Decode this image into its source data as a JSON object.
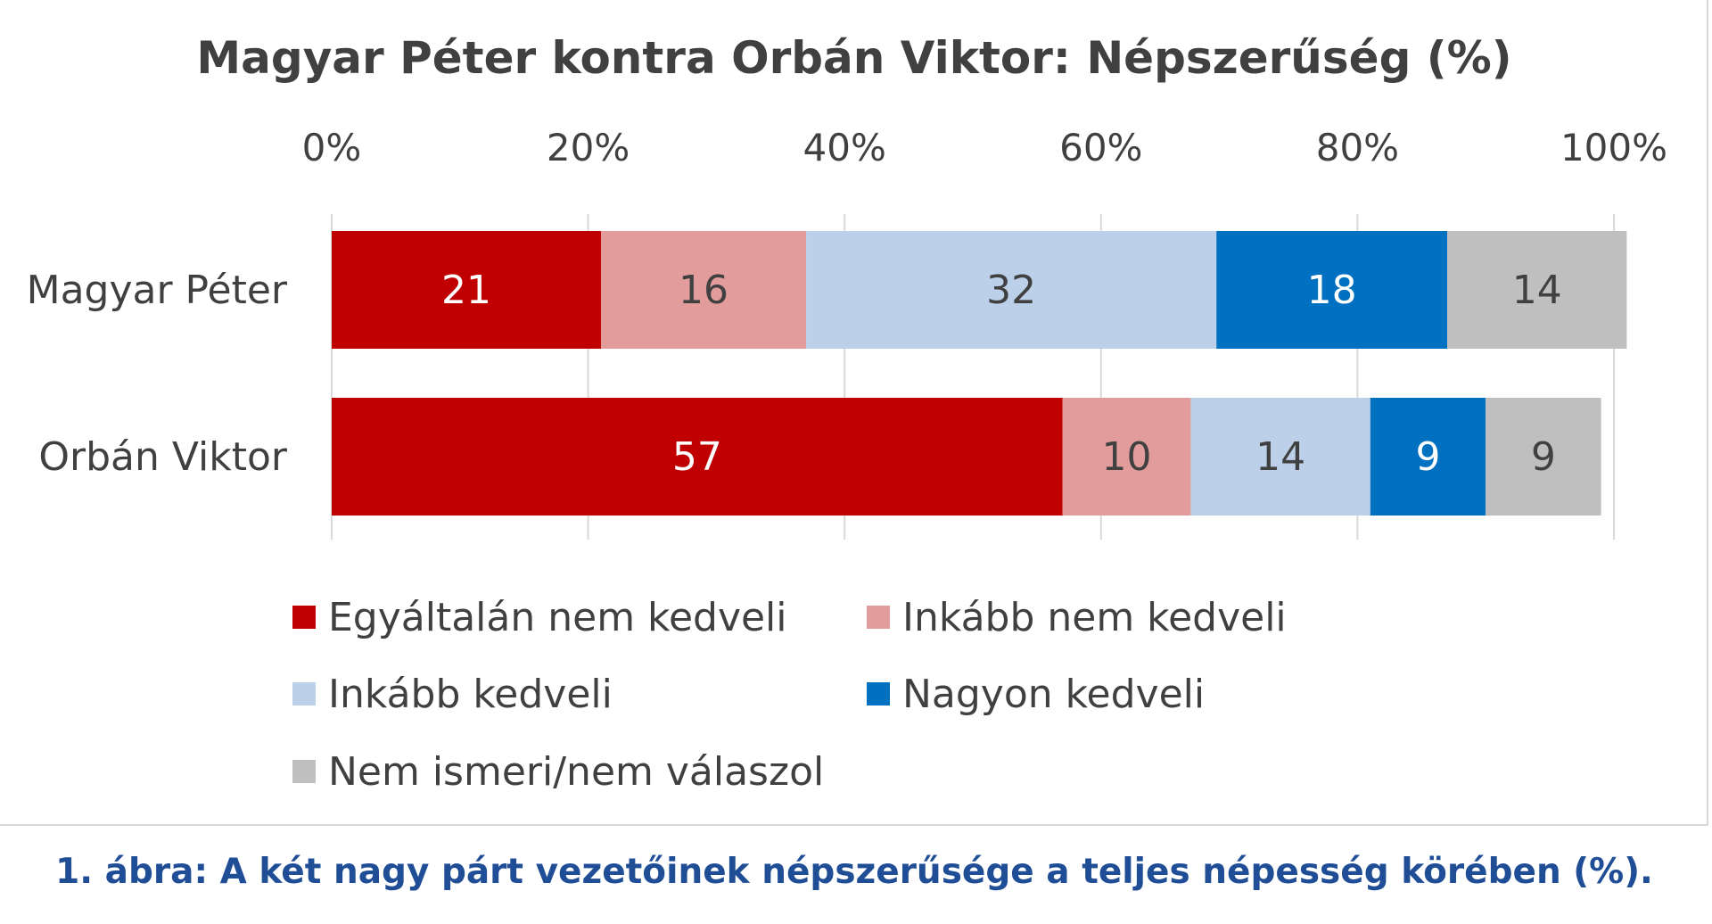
{
  "caption": "1. ábra: A két nagy párt vezetőinek népszerűsége a teljes népesség körében (%).",
  "chart_data": {
    "type": "bar",
    "orientation": "horizontal",
    "stacked": true,
    "title": "Magyar Péter kontra Orbán Viktor: Népszerűség (%)",
    "xlim": [
      0,
      100
    ],
    "x_ticks": [
      "0%",
      "20%",
      "40%",
      "60%",
      "80%",
      "100%"
    ],
    "grid": true,
    "legend_position": "bottom",
    "categories": [
      "Magyar Péter",
      "Orbán Viktor"
    ],
    "series": [
      {
        "name": "Egyáltalán nem kedveli",
        "color": "#c00000",
        "label_color": "#ffffff",
        "values": [
          21,
          57
        ]
      },
      {
        "name": "Inkább nem kedveli",
        "color": "#e39c9c",
        "label_color": "#404040",
        "values": [
          16,
          10
        ]
      },
      {
        "name": "Inkább kedveli",
        "color": "#bcd0ea",
        "label_color": "#404040",
        "values": [
          32,
          14
        ]
      },
      {
        "name": "Nagyon kedveli",
        "color": "#0070c0",
        "label_color": "#ffffff",
        "values": [
          18,
          9
        ]
      },
      {
        "name": "Nem ismeri/nem válaszol",
        "color": "#bfbfbf",
        "label_color": "#404040",
        "values": [
          14,
          9
        ]
      }
    ]
  }
}
